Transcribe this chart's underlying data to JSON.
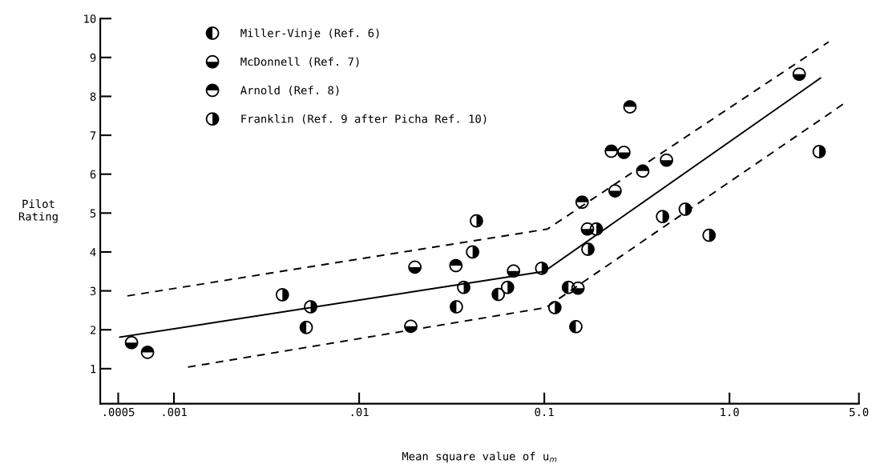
{
  "chart_data": {
    "type": "scatter",
    "xlabel": "Mean square value of u$_{m}$",
    "ylabel": "Pilot\nRating",
    "log": "x",
    "xlim": [
      0.0004,
      5.0
    ],
    "ylim": [
      0.1,
      10
    ],
    "xticks": [
      {
        "value": 0.0005,
        "label": ".0005"
      },
      {
        "value": 0.001,
        "label": ".001"
      },
      {
        "value": 0.01,
        "label": ".01"
      },
      {
        "value": 0.1,
        "label": "0.1"
      },
      {
        "value": 1.0,
        "label": "1.0"
      },
      {
        "value": 5.0,
        "label": "5.0"
      }
    ],
    "yticks": [
      1,
      2,
      3,
      4,
      5,
      6,
      7,
      8,
      9,
      10
    ],
    "grid": false,
    "legend": "top left",
    "marker": "circle",
    "series": [
      {
        "name": "Miller-Vinje (Ref. 6)",
        "color": "#000000",
        "x": [
          0.00518,
          0.0564,
          0.0335,
          0.135,
          0.148
        ],
        "values": [
          2.06,
          2.91,
          2.59,
          3.09,
          2.08
        ]
      },
      {
        "name": "McDonnell (Ref. 7)",
        "color": "#000000",
        "x": [
          0.00059,
          0.02,
          0.0682,
          0.019,
          0.152,
          2.38,
          0.269,
          0.457,
          0.241,
          0.171
        ],
        "values": [
          1.67,
          3.61,
          3.51,
          2.09,
          3.07,
          8.57,
          6.56,
          6.36,
          5.57,
          4.59
        ]
      },
      {
        "name": "Arnold (Ref. 8)",
        "color": "#000000",
        "x": [
          0.00072,
          0.0333,
          0.29,
          0.23,
          0.34,
          0.16
        ],
        "values": [
          1.42,
          3.65,
          7.73,
          6.59,
          6.08,
          5.28
        ]
      },
      {
        "name": "Franklin (Ref. 9 after Picha Ref. 10)",
        "color": "#000000",
        "x": [
          0.00385,
          0.00547,
          0.0968,
          0.0367,
          0.0633,
          0.114,
          3.05,
          0.191,
          0.172,
          0.435,
          0.577,
          0.776,
          0.043,
          0.041
        ],
        "values": [
          2.9,
          2.59,
          3.58,
          3.09,
          3.09,
          2.57,
          6.58,
          4.59,
          4.07,
          4.91,
          5.1,
          4.43,
          4.8,
          4.0
        ]
      },
      {
        "type": "line",
        "marker": "none",
        "line_style": "solid",
        "color": "#000000",
        "x": [
          0.00051,
          0.1,
          3.1
        ],
        "values": [
          1.81,
          3.5,
          8.47
        ]
      },
      {
        "type": "line",
        "marker": "none",
        "line_style": "dashed",
        "color": "#000000",
        "x": [
          0.00056,
          0.104,
          3.43
        ],
        "values": [
          2.87,
          4.59,
          9.4
        ]
      },
      {
        "type": "line",
        "marker": "none",
        "line_style": "dashed",
        "color": "#000000",
        "x": [
          0.00119,
          0.102,
          4.11
        ],
        "values": [
          1.04,
          2.57,
          7.8
        ]
      }
    ]
  }
}
